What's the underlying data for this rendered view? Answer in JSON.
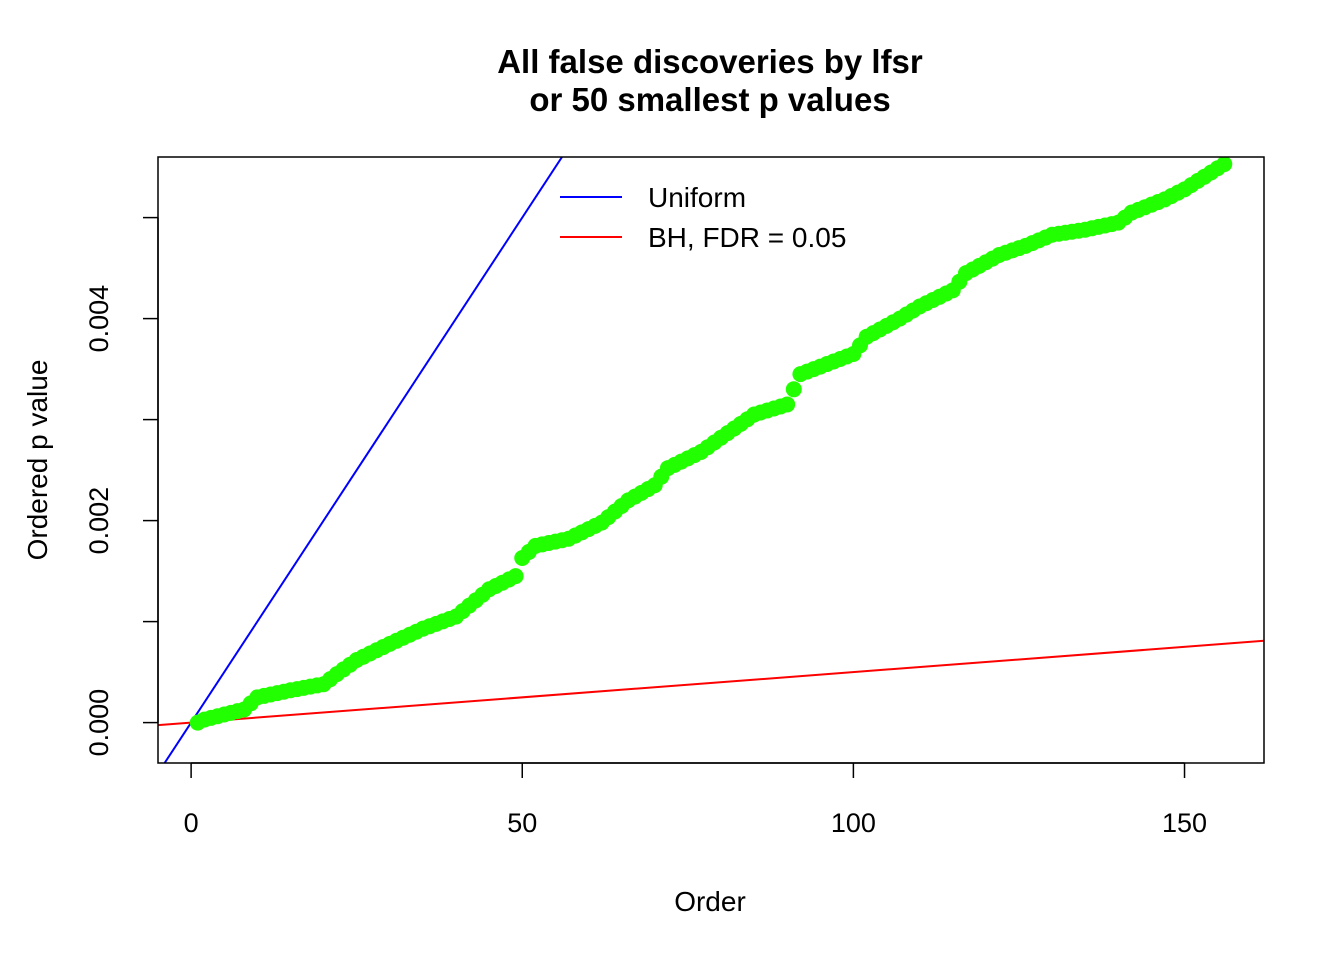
{
  "chart_data": {
    "type": "scatter",
    "title": [
      "All false discoveries by lfsr",
      "or 50 smallest p values"
    ],
    "xlabel": "Order",
    "ylabel": "Ordered p value",
    "xlim": [
      -5,
      162
    ],
    "ylim": [
      -0.0004,
      0.0056
    ],
    "x_ticks": [
      0,
      50,
      100,
      150
    ],
    "x_tick_labels": [
      "0",
      "50",
      "100",
      "150"
    ],
    "y_ticks": [
      0.0,
      0.001,
      0.002,
      0.003,
      0.004,
      0.005
    ],
    "y_tick_labels": [
      "0.000",
      "",
      "0.002",
      "",
      "0.004",
      ""
    ],
    "grid": false,
    "legend_position": "top-center",
    "n_points": 156,
    "points_color": "#22ff00",
    "ordered_p_values_keypoints": {
      "x": [
        1,
        2,
        5,
        8,
        10,
        15,
        20,
        22,
        25,
        30,
        35,
        40,
        45,
        49,
        50,
        52,
        57,
        62,
        66,
        70,
        72,
        77,
        80,
        85,
        90,
        92,
        96,
        100,
        102,
        107,
        110,
        115,
        117,
        122,
        126,
        130,
        135,
        140,
        142,
        147,
        150,
        156
      ],
      "y": [
        0.0,
        3e-05,
        8e-05,
        0.00013,
        0.00025,
        0.00032,
        0.00038,
        0.00048,
        0.00062,
        0.00078,
        0.00093,
        0.00105,
        0.00132,
        0.00145,
        0.00163,
        0.00175,
        0.00182,
        0.00198,
        0.0022,
        0.00235,
        0.00252,
        0.00268,
        0.00282,
        0.00305,
        0.00315,
        0.00345,
        0.00355,
        0.00365,
        0.00382,
        0.004,
        0.00412,
        0.00428,
        0.00445,
        0.00463,
        0.00472,
        0.00483,
        0.00488,
        0.00495,
        0.00505,
        0.00518,
        0.00528,
        0.00553
      ]
    },
    "lines": [
      {
        "name": "Uniform",
        "color": "#0000ff",
        "intercept": 0.0,
        "slope": 0.0001
      },
      {
        "name": "BH, FDR = 0.05",
        "color": "#ff0000",
        "intercept": 0.0,
        "slope": 5e-06
      }
    ]
  }
}
